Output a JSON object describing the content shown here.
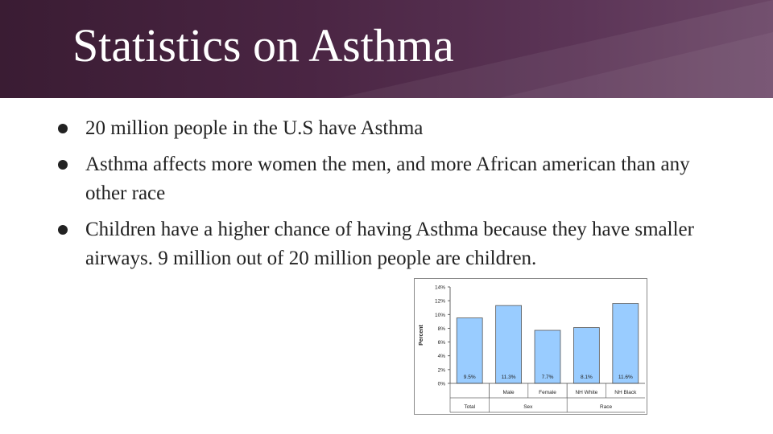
{
  "slide": {
    "title": "Statistics on Asthma",
    "bullets": [
      "20 million people in the U.S have Asthma",
      "Asthma affects more women the men, and more African american than any other race",
      "Children have a higher chance of having Asthma because they have smaller airways. 9 million out of 20 million people are children."
    ]
  },
  "colors": {
    "header": "#4a2543",
    "bar_fill": "#99ccff",
    "bar_stroke": "#555555"
  },
  "chart_data": {
    "type": "bar",
    "ylabel": "Percent",
    "ylim": [
      0,
      14
    ],
    "yticks": [
      "0%",
      "2%",
      "4%",
      "6%",
      "8%",
      "10%",
      "12%",
      "14%"
    ],
    "categories": [
      "Total",
      "Male",
      "Female",
      "NH White",
      "NH Black"
    ],
    "category_labels": [
      "",
      "Male",
      "Female",
      "NH White",
      "NH Black"
    ],
    "values": [
      9.5,
      11.3,
      7.7,
      8.1,
      11.6
    ],
    "value_labels": [
      "9.5%",
      "11.3%",
      "7.7%",
      "8.1%",
      "11.6%"
    ],
    "groups": [
      {
        "label": "Total",
        "span": 1
      },
      {
        "label": "Sex",
        "span": 2
      },
      {
        "label": "Race",
        "span": 2
      }
    ],
    "grid": false
  }
}
